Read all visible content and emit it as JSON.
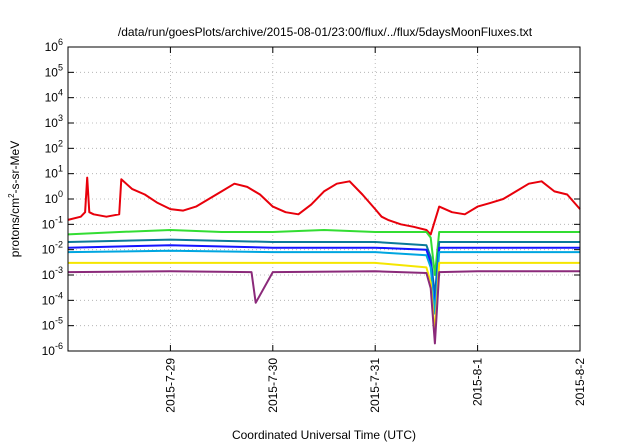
{
  "chart_data": {
    "type": "line",
    "title": "/data/run/goesPlots/archive/2015-08-01/23:00/flux/../flux/5daysMoonFluxes.txt",
    "xlabel": "Coordinated Universal Time (UTC)",
    "ylabel_base": "protons/cm",
    "ylabel_sup": "2",
    "ylabel_rest": "-s-sr-MeV",
    "x_scale": "date",
    "xlim": [
      "2015-07-28T00:00",
      "2015-08-02T00:00"
    ],
    "x_ticks": [
      "2015-7-29",
      "2015-7-30",
      "2015-7-31",
      "2015-8-1",
      "2015-8-2"
    ],
    "y_scale": "log",
    "ylim": [
      1e-06,
      1000000.0
    ],
    "y_ticks": [
      {
        "value": 1e-06,
        "base": "10",
        "exp": "-6"
      },
      {
        "value": 1e-05,
        "base": "10",
        "exp": "-5"
      },
      {
        "value": 0.0001,
        "base": "10",
        "exp": "-4"
      },
      {
        "value": 0.001,
        "base": "10",
        "exp": "-3"
      },
      {
        "value": 0.01,
        "base": "10",
        "exp": "-2"
      },
      {
        "value": 0.1,
        "base": "10",
        "exp": "-1"
      },
      {
        "value": 1.0,
        "base": "10",
        "exp": "0"
      },
      {
        "value": 10.0,
        "base": "10",
        "exp": "1"
      },
      {
        "value": 100.0,
        "base": "10",
        "exp": "2"
      },
      {
        "value": 1000.0,
        "base": "10",
        "exp": "3"
      },
      {
        "value": 10000.0,
        "base": "10",
        "exp": "4"
      },
      {
        "value": 100000.0,
        "base": "10",
        "exp": "5"
      },
      {
        "value": 1000000.0,
        "base": "10",
        "exp": "6"
      }
    ],
    "grid": true,
    "series": [
      {
        "color": "#e8000b",
        "x": [
          "2015-07-28T00:00",
          "2015-07-28T03:00",
          "2015-07-28T04:00",
          "2015-07-28T04:30",
          "2015-07-28T05:00",
          "2015-07-28T06:00",
          "2015-07-28T09:00",
          "2015-07-28T12:00",
          "2015-07-28T12:30",
          "2015-07-28T15:00",
          "2015-07-28T18:00",
          "2015-07-28T21:00",
          "2015-07-29T00:00",
          "2015-07-29T03:00",
          "2015-07-29T06:00",
          "2015-07-29T09:00",
          "2015-07-29T12:00",
          "2015-07-29T15:00",
          "2015-07-29T18:00",
          "2015-07-29T21:00",
          "2015-07-30T00:00",
          "2015-07-30T03:00",
          "2015-07-30T06:00",
          "2015-07-30T09:00",
          "2015-07-30T12:00",
          "2015-07-30T15:00",
          "2015-07-30T18:00",
          "2015-07-30T21:00",
          "2015-07-31T00:00",
          "2015-07-31T01:30",
          "2015-07-31T03:00",
          "2015-07-31T06:00",
          "2015-07-31T09:00",
          "2015-07-31T12:00",
          "2015-07-31T13:00",
          "2015-07-31T15:00",
          "2015-07-31T18:00",
          "2015-07-31T21:00",
          "2015-08-01T00:00",
          "2015-08-01T03:00",
          "2015-08-01T06:00",
          "2015-08-01T09:00",
          "2015-08-01T12:00",
          "2015-08-01T15:00",
          "2015-08-01T18:00",
          "2015-08-01T21:00",
          "2015-08-02T00:00"
        ],
        "values": [
          0.15,
          0.2,
          0.3,
          7,
          0.3,
          0.25,
          0.2,
          0.25,
          6,
          2.5,
          1.5,
          0.7,
          0.4,
          0.35,
          0.5,
          1,
          2,
          4,
          3,
          1.5,
          0.5,
          0.3,
          0.25,
          0.6,
          2,
          4,
          5,
          1.5,
          0.4,
          0.2,
          0.15,
          0.1,
          0.08,
          0.06,
          0.04,
          0.5,
          0.3,
          0.25,
          0.5,
          0.7,
          1,
          2,
          4,
          5,
          2,
          1.5,
          0.4
        ]
      },
      {
        "color": "#33dd33",
        "x": [
          "2015-07-28T00:00",
          "2015-07-28T12:00",
          "2015-07-29T00:00",
          "2015-07-29T12:00",
          "2015-07-30T00:00",
          "2015-07-30T12:00",
          "2015-07-31T00:00",
          "2015-07-31T12:00",
          "2015-07-31T13:00",
          "2015-07-31T14:00",
          "2015-07-31T15:00",
          "2015-08-01T00:00",
          "2015-08-01T12:00",
          "2015-08-02T00:00"
        ],
        "values": [
          0.04,
          0.05,
          0.06,
          0.05,
          0.05,
          0.06,
          0.05,
          0.05,
          0.03,
          0.001,
          0.05,
          0.05,
          0.05,
          0.05
        ]
      },
      {
        "color": "#0a7a9a",
        "x": [
          "2015-07-28T00:00",
          "2015-07-29T00:00",
          "2015-07-30T00:00",
          "2015-07-31T00:00",
          "2015-07-31T12:00",
          "2015-07-31T13:00",
          "2015-07-31T14:00",
          "2015-07-31T15:00",
          "2015-08-01T00:00",
          "2015-08-02T00:00"
        ],
        "values": [
          0.02,
          0.025,
          0.02,
          0.02,
          0.015,
          0.005,
          0.00015,
          0.02,
          0.02,
          0.02
        ]
      },
      {
        "color": "#1414ff",
        "x": [
          "2015-07-28T00:00",
          "2015-07-29T00:00",
          "2015-07-30T00:00",
          "2015-07-31T00:00",
          "2015-07-31T12:00",
          "2015-07-31T13:00",
          "2015-07-31T14:00",
          "2015-07-31T15:00",
          "2015-08-01T00:00",
          "2015-08-02T00:00"
        ],
        "values": [
          0.012,
          0.015,
          0.012,
          0.012,
          0.01,
          0.003,
          5e-05,
          0.012,
          0.012,
          0.012
        ]
      },
      {
        "color": "#00a6e0",
        "x": [
          "2015-07-28T00:00",
          "2015-07-29T00:00",
          "2015-07-30T00:00",
          "2015-07-31T00:00",
          "2015-07-31T12:00",
          "2015-07-31T13:00",
          "2015-07-31T14:00",
          "2015-07-31T15:00",
          "2015-08-01T00:00",
          "2015-08-02T00:00"
        ],
        "values": [
          0.008,
          0.009,
          0.008,
          0.008,
          0.006,
          0.002,
          3e-05,
          0.008,
          0.008,
          0.008
        ]
      },
      {
        "color": "#f5e600",
        "x": [
          "2015-07-28T00:00",
          "2015-07-29T00:00",
          "2015-07-30T00:00",
          "2015-07-31T00:00",
          "2015-07-31T12:00",
          "2015-07-31T13:00",
          "2015-07-31T14:00",
          "2015-07-31T15:00",
          "2015-08-01T00:00",
          "2015-08-02T00:00"
        ],
        "values": [
          0.003,
          0.003,
          0.003,
          0.003,
          0.002,
          0.0005,
          5e-06,
          0.003,
          0.003,
          0.003
        ]
      },
      {
        "color": "#8b2a7a",
        "x": [
          "2015-07-28T00:00",
          "2015-07-29T00:00",
          "2015-07-29T19:00",
          "2015-07-29T20:00",
          "2015-07-30T00:00",
          "2015-07-31T00:00",
          "2015-07-31T12:00",
          "2015-07-31T13:00",
          "2015-07-31T14:00",
          "2015-07-31T15:00",
          "2015-08-01T00:00",
          "2015-08-02T00:00"
        ],
        "values": [
          0.0013,
          0.0014,
          0.0013,
          8e-05,
          0.0013,
          0.0014,
          0.0012,
          0.0003,
          2e-06,
          0.0013,
          0.0014,
          0.0014
        ]
      }
    ]
  }
}
